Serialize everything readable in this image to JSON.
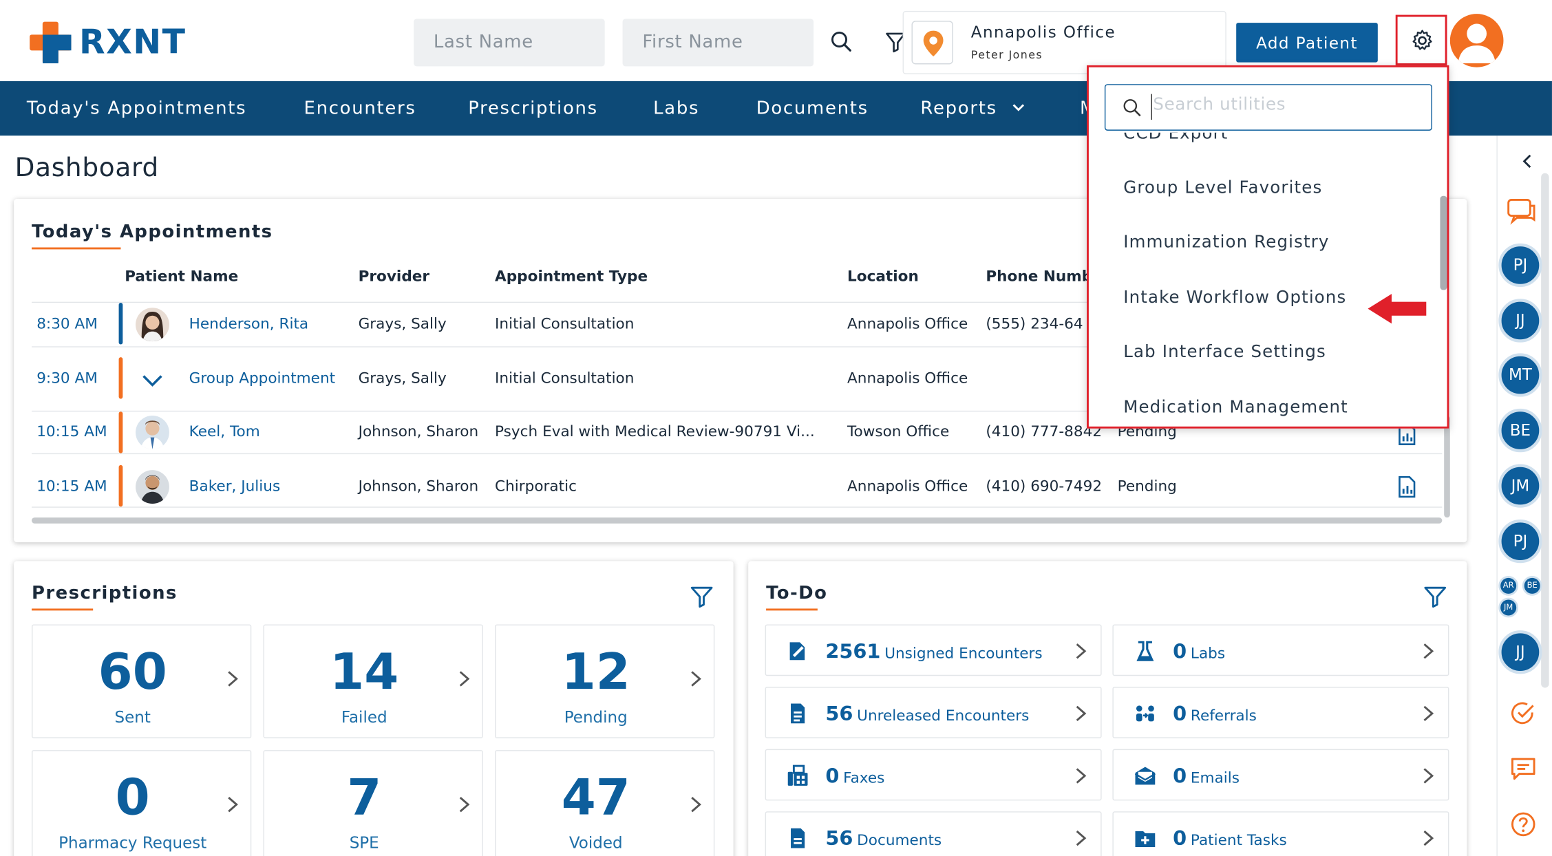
{
  "brand": {
    "name": "RXNT",
    "orange": "#f26f21",
    "blue": "#0d5e9c",
    "nav_bg": "#0d4a77",
    "highlight_red": "#e0202a"
  },
  "header": {
    "last_name_placeholder": "Last Name",
    "first_name_placeholder": "First Name",
    "search_icon": "search-icon",
    "filter_icon": "filter-icon",
    "office": {
      "name": "Annapolis Office",
      "user": "Peter Jones"
    },
    "add_patient_label": "Add Patient",
    "settings_icon": "gear-icon"
  },
  "nav": {
    "items": [
      "Today's Appointments",
      "Encounters",
      "Prescriptions",
      "Labs",
      "Documents",
      "Reports",
      "M"
    ]
  },
  "page_title": "Dashboard",
  "appointments": {
    "title": "Today's Appointments",
    "columns": [
      "Patient Name",
      "Provider",
      "Appointment Type",
      "Location",
      "Phone Numb"
    ],
    "rows": [
      {
        "time": "8:30 AM",
        "patient": "Henderson, Rita",
        "provider": "Grays, Sally",
        "type": "Initial Consultation",
        "location": "Annapolis Office",
        "phone": "(555) 234-64",
        "status": "",
        "bar_color": "#0d5e9c"
      },
      {
        "time": "9:30 AM",
        "patient": "Group Appointment",
        "provider": "Grays, Sally",
        "type": "Initial Consultation",
        "location": "Annapolis Office",
        "phone": "",
        "status": "",
        "bar_color": "#f26f21"
      },
      {
        "time": "10:15 AM",
        "patient": "Keel, Tom",
        "provider": "Johnson, Sharon",
        "type": "Psych Eval with Medical Review-90791 Vi...",
        "location": "Towson Office",
        "phone": "(410) 777-8842",
        "status": "Pending",
        "bar_color": "#f26f21"
      },
      {
        "time": "10:15 AM",
        "patient": "Baker, Julius",
        "provider": "Johnson, Sharon",
        "type": "Chirporatic",
        "location": "Annapolis Office",
        "phone": "(410) 690-7492",
        "status": "Pending",
        "bar_color": "#f26f21"
      }
    ]
  },
  "prescriptions": {
    "title": "Prescriptions",
    "stats": [
      {
        "value": "60",
        "label": "Sent"
      },
      {
        "value": "14",
        "label": "Failed"
      },
      {
        "value": "12",
        "label": "Pending"
      },
      {
        "value": "0",
        "label": "Pharmacy Request"
      },
      {
        "value": "7",
        "label": "SPE"
      },
      {
        "value": "47",
        "label": "Voided"
      }
    ]
  },
  "todo": {
    "title": "To-Do",
    "items": [
      {
        "count": "2561",
        "label": "Unsigned Encounters",
        "icon": "sign-document-icon"
      },
      {
        "count": "0",
        "label": "Labs",
        "icon": "lab-flask-icon"
      },
      {
        "count": "56",
        "label": "Unreleased Encounters",
        "icon": "document-icon"
      },
      {
        "count": "0",
        "label": "Referrals",
        "icon": "referral-icon"
      },
      {
        "count": "0",
        "label": "Faxes",
        "icon": "fax-icon"
      },
      {
        "count": "0",
        "label": "Emails",
        "icon": "email-icon"
      },
      {
        "count": "56",
        "label": "Documents",
        "icon": "file-icon"
      },
      {
        "count": "0",
        "label": "Patient Tasks",
        "icon": "folder-plus-icon"
      }
    ]
  },
  "rail": {
    "users": [
      "PJ",
      "JJ",
      "MT",
      "BE",
      "JM",
      "PJ"
    ],
    "small_users": [
      "AR",
      "BE",
      "JM"
    ],
    "last_user": "JJ"
  },
  "utilities_dropdown": {
    "search_placeholder": "Search utilities",
    "items": [
      "CCD Export",
      "Group Level Favorites",
      "Immunization Registry",
      "Intake Workflow Options",
      "Lab Interface Settings",
      "Medication Management"
    ]
  }
}
